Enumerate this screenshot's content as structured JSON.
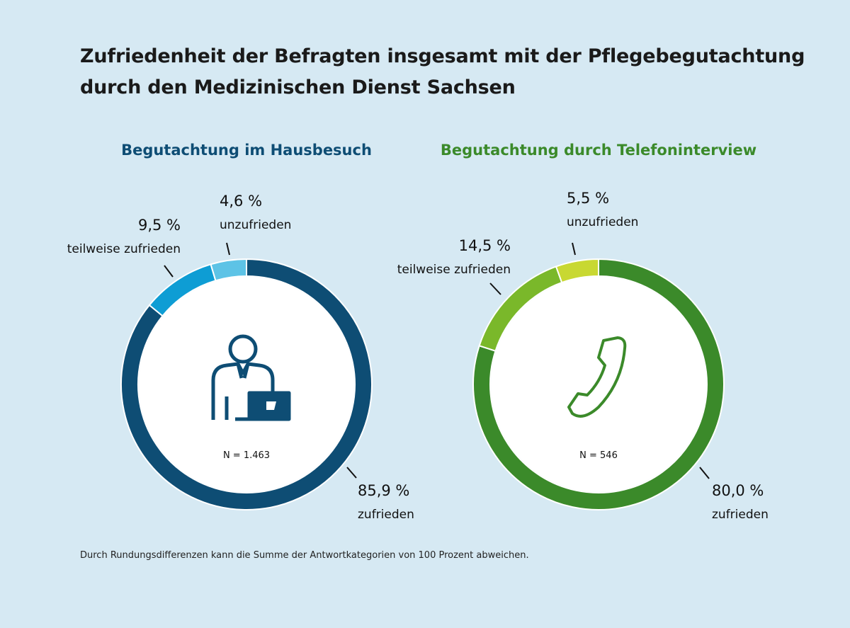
{
  "title_lines": [
    "Zufriedenheit der Befragten insgesamt mit der Pflegebegutachtung",
    "durch den Medizinischen Dienst Sachsen"
  ],
  "footnote": "Durch Rundungsdifferenzen kann die Summe der Antwortkategorien von 100 Prozent abweichen.",
  "colors": {
    "background": "#d6e9f3"
  },
  "chart_data": [
    {
      "type": "pie",
      "title": "Begutachtung im Hausbesuch",
      "title_color": "#0e4d74",
      "icon": "person-laptop-icon",
      "n_label": "N = 1.463",
      "slices": [
        {
          "label": "zufrieden",
          "value": 85.9,
          "value_label": "85,9 %",
          "color": "#0e4d74"
        },
        {
          "label": "teilweise zufrieden",
          "value": 9.5,
          "value_label": "9,5 %",
          "color": "#0e9dd4"
        },
        {
          "label": "unzufrieden",
          "value": 4.6,
          "value_label": "4,6 %",
          "color": "#5dc3e6"
        }
      ]
    },
    {
      "type": "pie",
      "title": "Begutachtung durch Telefoninterview",
      "title_color": "#3b8a2a",
      "icon": "phone-handset-icon",
      "n_label": "N = 546",
      "slices": [
        {
          "label": "zufrieden",
          "value": 80.0,
          "value_label": "80,0 %",
          "color": "#3b8a2a"
        },
        {
          "label": "teilweise zufrieden",
          "value": 14.5,
          "value_label": "14,5 %",
          "color": "#7ab82a"
        },
        {
          "label": "unzufrieden",
          "value": 5.5,
          "value_label": "5,5 %",
          "color": "#c8d832"
        }
      ]
    }
  ]
}
